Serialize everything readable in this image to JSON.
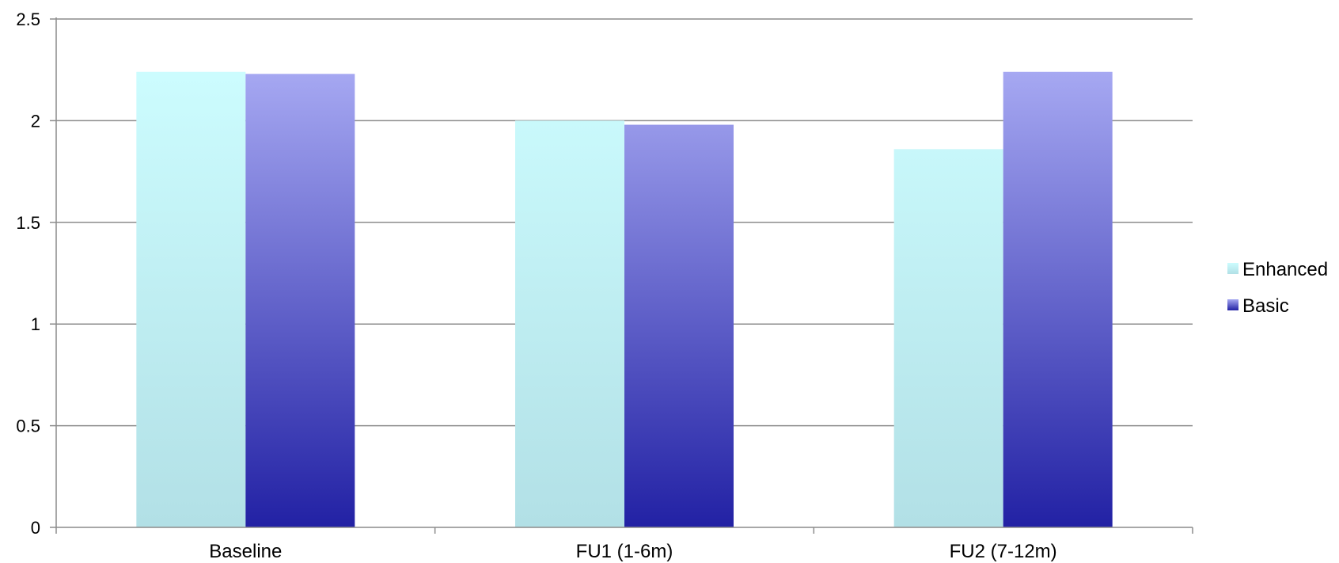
{
  "chart_data": {
    "type": "bar",
    "title": "",
    "xlabel": "",
    "ylabel": "",
    "categories": [
      "Baseline",
      "FU1 (1-6m)",
      "FU2 (7-12m)"
    ],
    "series": [
      {
        "name": "Enhanced",
        "values": [
          2.24,
          2.0,
          1.86
        ],
        "color_top": "#ccfcfe",
        "color_bottom": "#b2e0e6"
      },
      {
        "name": "Basic",
        "values": [
          2.23,
          1.98,
          2.24
        ],
        "color_top": "#a6a8f2",
        "color_bottom": "#2221a4"
      }
    ],
    "ylim": [
      0,
      2.5
    ],
    "yticks": [
      "0",
      "0.5",
      "1",
      "1.5",
      "2",
      "2.5"
    ],
    "grid": true,
    "legend_position": "right"
  }
}
